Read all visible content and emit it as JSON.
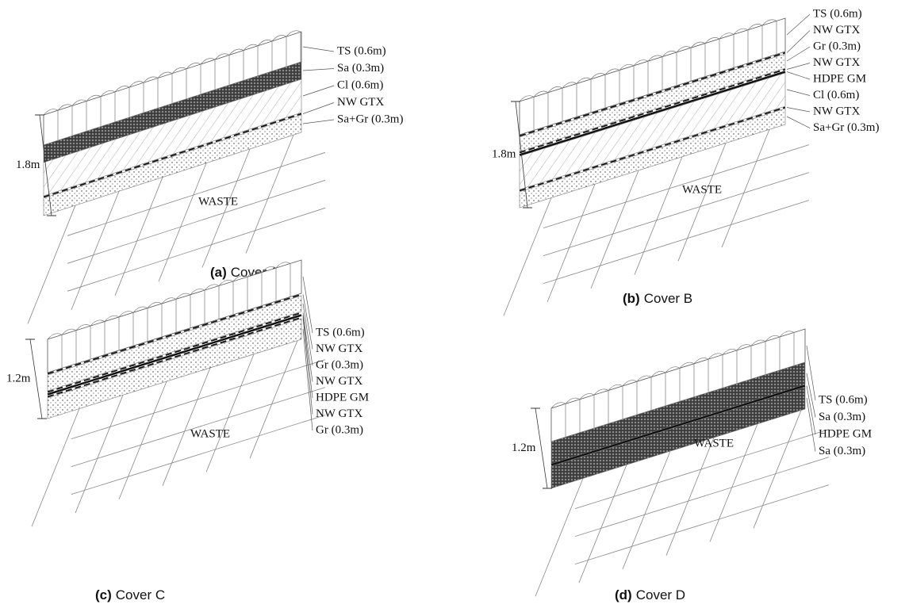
{
  "panels": [
    {
      "caption_letter": "(a)",
      "caption": "Cover A",
      "height": "1.8m",
      "waste": "WASTE",
      "layers": [
        "TS (0.6m)",
        "Sa (0.3m)",
        "Cl (0.6m)",
        "NW GTX",
        "Sa+Gr (0.3m)"
      ]
    },
    {
      "caption_letter": "(b)",
      "caption": "Cover B",
      "height": "1.8m",
      "waste": "WASTE",
      "layers": [
        "TS (0.6m)",
        "NW GTX",
        "Gr (0.3m)",
        "NW GTX",
        "HDPE GM",
        "Cl (0.6m)",
        "NW GTX",
        "Sa+Gr (0.3m)"
      ]
    },
    {
      "caption_letter": "(c)",
      "caption": "Cover C",
      "height": "1.2m",
      "waste": "WASTE",
      "layers": [
        "TS (0.6m)",
        "NW GTX",
        "Gr (0.3m)",
        "NW GTX",
        "HDPE GM",
        "NW GTX",
        "Gr (0.3m)"
      ]
    },
    {
      "caption_letter": "(d)",
      "caption": "Cover D",
      "height": "1.2m",
      "waste": "WASTE",
      "layers": [
        "TS (0.6m)",
        "Sa (0.3m)",
        "HDPE GM",
        "Sa (0.3m)"
      ]
    }
  ]
}
